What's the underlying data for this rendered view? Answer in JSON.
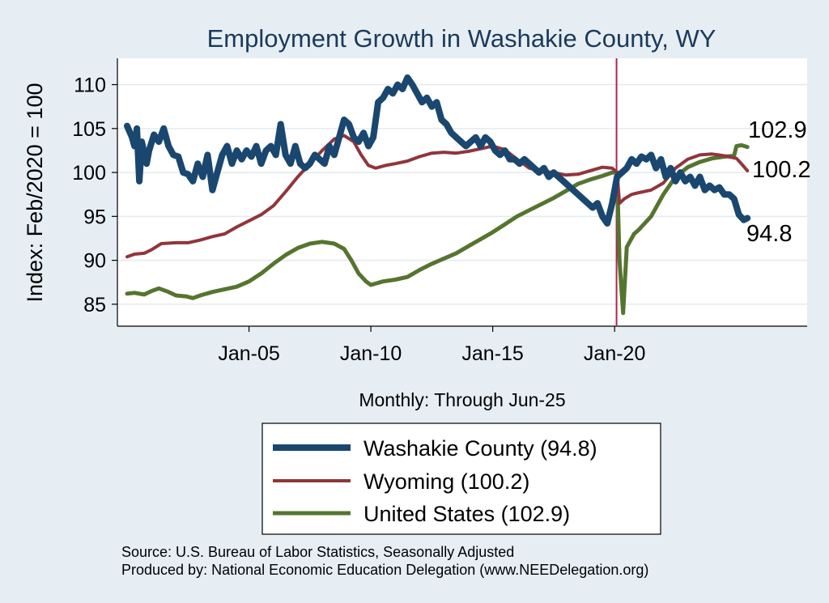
{
  "chart_data": {
    "type": "line",
    "title": "Employment Growth in Washakie  County, WY",
    "xlabel": "Monthly: Through Jun-25",
    "ylabel": "Index: Feb/2020 = 100",
    "ylim": [
      82.5,
      113
    ],
    "yticks": [
      85,
      90,
      95,
      100,
      105,
      110
    ],
    "xlim": [
      1999.6,
      2027.9
    ],
    "xticks": [
      {
        "value": 2005.0,
        "label": "Jan-05"
      },
      {
        "value": 2010.0,
        "label": "Jan-10"
      },
      {
        "value": 2015.0,
        "label": "Jan-15"
      },
      {
        "value": 2020.0,
        "label": "Jan-20"
      }
    ],
    "reference_line_x": 2020.08,
    "grid": true,
    "series": [
      {
        "name": "Washakie  County (94.8)",
        "end_label": "94.8",
        "color": "#1a476f",
        "width": 8,
        "points": [
          [
            2000.0,
            105.3
          ],
          [
            2000.2,
            104.0
          ],
          [
            2000.3,
            103.0
          ],
          [
            2000.4,
            105.0
          ],
          [
            2000.5,
            99.0
          ],
          [
            2000.6,
            103.5
          ],
          [
            2000.8,
            101.0
          ],
          [
            2000.9,
            102.5
          ],
          [
            2001.1,
            104.3
          ],
          [
            2001.3,
            103.5
          ],
          [
            2001.5,
            105.0
          ],
          [
            2001.7,
            103.0
          ],
          [
            2001.9,
            102.0
          ],
          [
            2002.1,
            101.8
          ],
          [
            2002.3,
            100.0
          ],
          [
            2002.5,
            99.8
          ],
          [
            2002.7,
            99.0
          ],
          [
            2002.9,
            101.0
          ],
          [
            2003.1,
            99.5
          ],
          [
            2003.3,
            102.0
          ],
          [
            2003.5,
            98.0
          ],
          [
            2003.7,
            100.0
          ],
          [
            2003.9,
            102.0
          ],
          [
            2004.1,
            103.0
          ],
          [
            2004.3,
            101.0
          ],
          [
            2004.5,
            102.5
          ],
          [
            2004.7,
            101.5
          ],
          [
            2004.9,
            102.5
          ],
          [
            2005.1,
            101.8
          ],
          [
            2005.3,
            103.0
          ],
          [
            2005.5,
            101.0
          ],
          [
            2005.7,
            102.5
          ],
          [
            2005.9,
            103.0
          ],
          [
            2006.1,
            102.0
          ],
          [
            2006.3,
            105.5
          ],
          [
            2006.5,
            102.0
          ],
          [
            2006.7,
            101.0
          ],
          [
            2006.9,
            103.0
          ],
          [
            2007.1,
            101.0
          ],
          [
            2007.3,
            100.5
          ],
          [
            2007.5,
            101.0
          ],
          [
            2007.7,
            102.0
          ],
          [
            2007.9,
            101.5
          ],
          [
            2008.1,
            101.0
          ],
          [
            2008.3,
            103.0
          ],
          [
            2008.5,
            102.0
          ],
          [
            2008.7,
            104.0
          ],
          [
            2008.9,
            106.0
          ],
          [
            2009.1,
            105.5
          ],
          [
            2009.3,
            104.0
          ],
          [
            2009.5,
            103.5
          ],
          [
            2009.7,
            104.5
          ],
          [
            2009.9,
            103.0
          ],
          [
            2010.1,
            104.0
          ],
          [
            2010.3,
            108.0
          ],
          [
            2010.5,
            108.5
          ],
          [
            2010.7,
            109.5
          ],
          [
            2010.9,
            109.0
          ],
          [
            2011.1,
            110.0
          ],
          [
            2011.3,
            109.5
          ],
          [
            2011.5,
            110.8
          ],
          [
            2011.7,
            110.0
          ],
          [
            2011.9,
            109.0
          ],
          [
            2012.1,
            108.0
          ],
          [
            2012.3,
            108.5
          ],
          [
            2012.5,
            107.5
          ],
          [
            2012.7,
            108.0
          ],
          [
            2012.9,
            106.0
          ],
          [
            2013.1,
            105.5
          ],
          [
            2013.3,
            104.5
          ],
          [
            2013.5,
            104.0
          ],
          [
            2013.7,
            103.5
          ],
          [
            2013.9,
            103.0
          ],
          [
            2014.1,
            103.5
          ],
          [
            2014.3,
            104.0
          ],
          [
            2014.5,
            103.0
          ],
          [
            2014.7,
            104.0
          ],
          [
            2014.9,
            103.5
          ],
          [
            2015.1,
            102.5
          ],
          [
            2015.3,
            102.0
          ],
          [
            2015.5,
            102.5
          ],
          [
            2015.7,
            101.5
          ],
          [
            2015.9,
            101.5
          ],
          [
            2016.1,
            101.0
          ],
          [
            2016.3,
            101.5
          ],
          [
            2016.5,
            101.0
          ],
          [
            2016.7,
            100.5
          ],
          [
            2016.9,
            100.0
          ],
          [
            2017.1,
            100.5
          ],
          [
            2017.3,
            99.5
          ],
          [
            2017.5,
            100.0
          ],
          [
            2017.7,
            99.5
          ],
          [
            2017.9,
            99.0
          ],
          [
            2018.1,
            98.5
          ],
          [
            2018.3,
            98.0
          ],
          [
            2018.5,
            97.5
          ],
          [
            2018.7,
            97.0
          ],
          [
            2018.9,
            96.5
          ],
          [
            2019.1,
            96.0
          ],
          [
            2019.3,
            96.5
          ],
          [
            2019.5,
            95.0
          ],
          [
            2019.7,
            94.2
          ],
          [
            2019.9,
            96.5
          ],
          [
            2020.1,
            99.5
          ],
          [
            2020.3,
            100.0
          ],
          [
            2020.5,
            100.5
          ],
          [
            2020.7,
            101.5
          ],
          [
            2020.9,
            101.0
          ],
          [
            2021.1,
            101.8
          ],
          [
            2021.3,
            101.5
          ],
          [
            2021.5,
            102.0
          ],
          [
            2021.7,
            100.5
          ],
          [
            2021.9,
            101.5
          ],
          [
            2022.1,
            99.5
          ],
          [
            2022.3,
            100.5
          ],
          [
            2022.5,
            99.0
          ],
          [
            2022.7,
            100.0
          ],
          [
            2022.9,
            99.0
          ],
          [
            2023.1,
            99.5
          ],
          [
            2023.3,
            98.5
          ],
          [
            2023.5,
            99.5
          ],
          [
            2023.7,
            98.0
          ],
          [
            2023.9,
            98.5
          ],
          [
            2024.1,
            98.0
          ],
          [
            2024.3,
            98.3
          ],
          [
            2024.5,
            97.5
          ],
          [
            2024.7,
            97.5
          ],
          [
            2024.9,
            97.0
          ],
          [
            2025.1,
            95.2
          ],
          [
            2025.3,
            94.6
          ],
          [
            2025.45,
            94.8
          ]
        ]
      },
      {
        "name": "Wyoming (100.2)",
        "end_label": "100.2",
        "color": "#90353b",
        "width": 4,
        "points": [
          [
            2000.0,
            90.4
          ],
          [
            2000.3,
            90.7
          ],
          [
            2000.7,
            90.8
          ],
          [
            2001.0,
            91.2
          ],
          [
            2001.4,
            91.9
          ],
          [
            2002.0,
            92.0
          ],
          [
            2002.5,
            92.0
          ],
          [
            2003.0,
            92.3
          ],
          [
            2003.5,
            92.7
          ],
          [
            2004.0,
            93.0
          ],
          [
            2004.5,
            93.8
          ],
          [
            2005.0,
            94.5
          ],
          [
            2005.5,
            95.2
          ],
          [
            2006.0,
            96.2
          ],
          [
            2006.5,
            97.8
          ],
          [
            2007.0,
            99.5
          ],
          [
            2007.5,
            101.0
          ],
          [
            2008.0,
            102.5
          ],
          [
            2008.5,
            103.8
          ],
          [
            2008.9,
            104.2
          ],
          [
            2009.3,
            103.5
          ],
          [
            2009.6,
            102.0
          ],
          [
            2009.9,
            100.8
          ],
          [
            2010.2,
            100.5
          ],
          [
            2010.6,
            100.8
          ],
          [
            2011.0,
            101.0
          ],
          [
            2011.5,
            101.3
          ],
          [
            2012.0,
            101.8
          ],
          [
            2012.5,
            102.2
          ],
          [
            2013.0,
            102.3
          ],
          [
            2013.5,
            102.2
          ],
          [
            2014.0,
            102.4
          ],
          [
            2014.5,
            102.7
          ],
          [
            2015.0,
            103.0
          ],
          [
            2015.5,
            102.6
          ],
          [
            2016.0,
            101.5
          ],
          [
            2016.5,
            100.5
          ],
          [
            2017.0,
            100.1
          ],
          [
            2017.5,
            100.0
          ],
          [
            2018.0,
            99.7
          ],
          [
            2018.5,
            99.8
          ],
          [
            2019.0,
            100.2
          ],
          [
            2019.5,
            100.6
          ],
          [
            2019.9,
            100.5
          ],
          [
            2020.1,
            100.0
          ],
          [
            2020.2,
            96.5
          ],
          [
            2020.4,
            97.0
          ],
          [
            2020.7,
            97.5
          ],
          [
            2021.0,
            97.7
          ],
          [
            2021.5,
            98.0
          ],
          [
            2022.0,
            98.8
          ],
          [
            2022.5,
            100.5
          ],
          [
            2023.0,
            101.5
          ],
          [
            2023.5,
            102.0
          ],
          [
            2024.0,
            102.1
          ],
          [
            2024.5,
            101.9
          ],
          [
            2025.0,
            101.6
          ],
          [
            2025.2,
            101.0
          ],
          [
            2025.45,
            100.2
          ]
        ]
      },
      {
        "name": "United States (102.9)",
        "end_label": "102.9",
        "color": "#55752f",
        "width": 5,
        "points": [
          [
            2000.0,
            86.2
          ],
          [
            2000.3,
            86.3
          ],
          [
            2000.7,
            86.1
          ],
          [
            2001.0,
            86.5
          ],
          [
            2001.3,
            86.8
          ],
          [
            2001.7,
            86.4
          ],
          [
            2002.0,
            86.0
          ],
          [
            2002.4,
            85.9
          ],
          [
            2002.7,
            85.7
          ],
          [
            2003.0,
            86.0
          ],
          [
            2003.5,
            86.4
          ],
          [
            2004.0,
            86.7
          ],
          [
            2004.5,
            87.0
          ],
          [
            2005.0,
            87.6
          ],
          [
            2005.5,
            88.5
          ],
          [
            2006.0,
            89.6
          ],
          [
            2006.5,
            90.6
          ],
          [
            2007.0,
            91.4
          ],
          [
            2007.5,
            91.9
          ],
          [
            2008.0,
            92.1
          ],
          [
            2008.5,
            91.9
          ],
          [
            2008.9,
            91.3
          ],
          [
            2009.2,
            90.0
          ],
          [
            2009.5,
            88.5
          ],
          [
            2009.8,
            87.6
          ],
          [
            2010.0,
            87.2
          ],
          [
            2010.5,
            87.6
          ],
          [
            2011.0,
            87.8
          ],
          [
            2011.5,
            88.1
          ],
          [
            2012.0,
            88.9
          ],
          [
            2012.5,
            89.6
          ],
          [
            2013.0,
            90.2
          ],
          [
            2013.5,
            90.8
          ],
          [
            2014.0,
            91.6
          ],
          [
            2014.5,
            92.4
          ],
          [
            2015.0,
            93.2
          ],
          [
            2015.5,
            94.1
          ],
          [
            2016.0,
            95.0
          ],
          [
            2016.5,
            95.7
          ],
          [
            2017.0,
            96.4
          ],
          [
            2017.5,
            97.1
          ],
          [
            2018.0,
            97.9
          ],
          [
            2018.5,
            98.7
          ],
          [
            2019.0,
            99.2
          ],
          [
            2019.5,
            99.6
          ],
          [
            2019.9,
            100.0
          ],
          [
            2020.1,
            100.0
          ],
          [
            2020.2,
            90.0
          ],
          [
            2020.35,
            84.0
          ],
          [
            2020.5,
            91.5
          ],
          [
            2020.8,
            93.0
          ],
          [
            2021.0,
            93.5
          ],
          [
            2021.5,
            95.0
          ],
          [
            2022.0,
            97.5
          ],
          [
            2022.5,
            99.5
          ],
          [
            2023.0,
            100.6
          ],
          [
            2023.5,
            101.2
          ],
          [
            2024.0,
            101.6
          ],
          [
            2024.5,
            101.8
          ],
          [
            2024.9,
            101.9
          ],
          [
            2025.0,
            103.0
          ],
          [
            2025.2,
            103.1
          ],
          [
            2025.45,
            102.9
          ]
        ]
      }
    ]
  },
  "source_note": "Source: U.S. Bureau of Labor Statistics, Seasonally Adjusted",
  "producer_note": "Produced by: National Economic Education Delegation (www.NEEDelegation.org)"
}
